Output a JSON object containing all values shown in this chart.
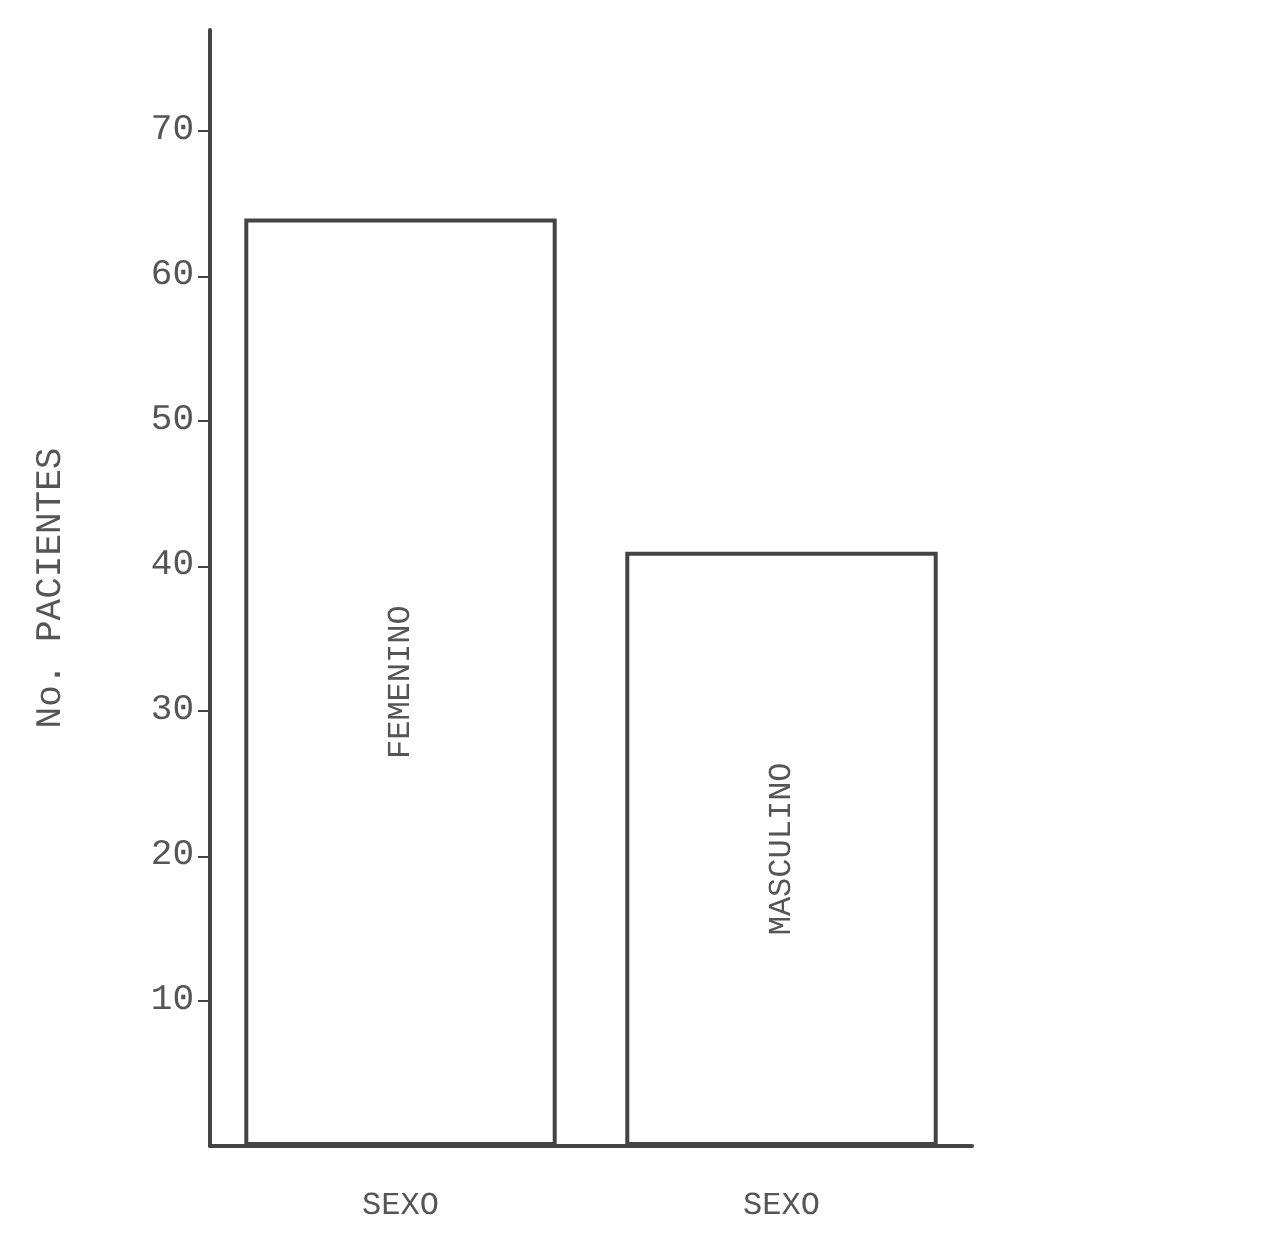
{
  "chart_data": {
    "type": "bar",
    "ylabel": "No. PACIENTES",
    "categories": [
      "SEXO",
      "SEXO"
    ],
    "series": [
      {
        "name": "FEMENINO",
        "color": "#ffffff",
        "values": [
          64,
          null
        ]
      },
      {
        "name": "MASCULINO",
        "color": "#ffffff",
        "values": [
          null,
          41
        ]
      }
    ],
    "ylim": [
      0,
      77
    ],
    "yticks": [
      10,
      20,
      30,
      40,
      50,
      60,
      70
    ],
    "grid": false,
    "legend": false
  }
}
